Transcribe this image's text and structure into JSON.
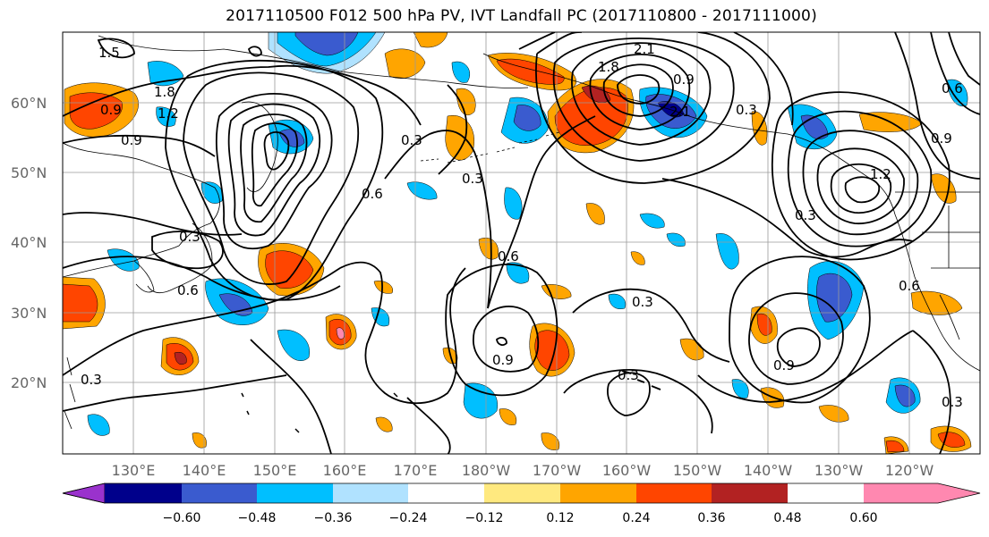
{
  "title": "2017110500 F012 500 hPa PV, IVT Landfall PC (2017110800 - 2017111000)",
  "lat_labels": [
    "60°N",
    "50°N",
    "40°N",
    "30°N",
    "20°N"
  ],
  "lon_labels": [
    "130°E",
    "140°E",
    "150°E",
    "160°E",
    "170°E",
    "180°W",
    "170°W",
    "160°W",
    "150°W",
    "140°W",
    "130°W",
    "120°W"
  ],
  "contour_labels": [
    "1.5",
    "1.8",
    "0.9",
    "1.2",
    "0.9",
    "0.3",
    "0.6",
    "0.3",
    "0.6",
    "0.9",
    "0.3",
    "2.1",
    "1.8",
    "2.1",
    "0.3",
    "0.3",
    "0.3",
    "0.6",
    "0.9",
    "0.3",
    "0.9",
    "0.3",
    "1.2",
    "0.9",
    "0.6",
    "0.3",
    "0.6"
  ],
  "colorbar": {
    "tick_labels": [
      "−0.60",
      "−0.48",
      "−0.36",
      "−0.24",
      "−0.12",
      "0.12",
      "0.24",
      "0.36",
      "0.48",
      "0.60"
    ],
    "colors": [
      "#9a32cd",
      "#00008b",
      "#3a5bcf",
      "#00bfff",
      "#b0e2ff",
      "#ffffff",
      "#ffe97f",
      "#ffa500",
      "#ff4500",
      "#b22222",
      "#ff88b0"
    ]
  },
  "colors": {
    "grid": "#9a9a9a",
    "axis_text": "#666666",
    "contour": "#000000"
  }
}
